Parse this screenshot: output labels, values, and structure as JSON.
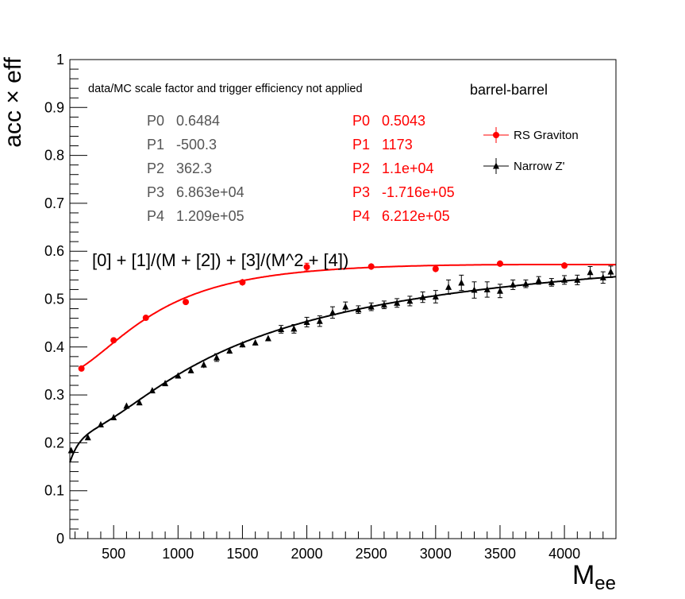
{
  "chart_data": {
    "type": "scatter",
    "xlabel": "M",
    "xlabel_sub": "ee",
    "ylabel": "acc × eff",
    "xlim": [
      160,
      4400
    ],
    "ylim": [
      0,
      1
    ],
    "x_ticks": [
      500,
      1000,
      1500,
      2000,
      2500,
      3000,
      3500,
      4000
    ],
    "y_ticks": [
      0,
      0.1,
      0.2,
      0.3,
      0.4,
      0.5,
      0.6,
      0.7,
      0.8,
      0.9,
      1
    ],
    "x_tick_labels": [
      "500",
      "1000",
      "1500",
      "2000",
      "2500",
      "3000",
      "3500",
      "4000"
    ],
    "y_tick_labels": [
      "0",
      "0.1",
      "0.2",
      "0.3",
      "0.4",
      "0.5",
      "0.6",
      "0.7",
      "0.8",
      "0.9",
      "1"
    ],
    "grid": false,
    "legend_position": "top-right",
    "annotations": {
      "note": "data/MC scale factor and trigger efficiency not applied",
      "category": "barrel-barrel",
      "formula": "[0] + [1]/(M + [2]) + [3]/(M^2 + [4])"
    },
    "fit_params": [
      {
        "series": "Narrow Z'",
        "color": "#555555",
        "labels": [
          "P0",
          "P1",
          "P2",
          "P3",
          "P4"
        ],
        "values": [
          "0.6484",
          "-500.3",
          "362.3",
          "6.863e+04",
          "1.209e+05"
        ],
        "numeric": [
          0.6484,
          -500.3,
          362.3,
          68630,
          120900
        ]
      },
      {
        "series": "RS Graviton",
        "color": "#ff0000",
        "labels": [
          "P0",
          "P1",
          "P2",
          "P3",
          "P4"
        ],
        "values": [
          "0.5043",
          "1173",
          "1.1e+04",
          "-1.716e+05",
          "6.212e+05"
        ],
        "numeric": [
          0.5043,
          1173,
          11000,
          -171600,
          621200
        ]
      }
    ],
    "series": [
      {
        "name": "RS Graviton",
        "color": "#ff0000",
        "marker": "circle",
        "points": [
          {
            "x": 250,
            "y": 0.355,
            "err": 0.005
          },
          {
            "x": 500,
            "y": 0.414,
            "err": 0.005
          },
          {
            "x": 750,
            "y": 0.461,
            "err": 0.005
          },
          {
            "x": 1060,
            "y": 0.494,
            "err": 0.006
          },
          {
            "x": 1500,
            "y": 0.535,
            "err": 0.007
          },
          {
            "x": 2000,
            "y": 0.567,
            "err": 0.008
          },
          {
            "x": 2500,
            "y": 0.568,
            "err": 0.007
          },
          {
            "x": 3000,
            "y": 0.563,
            "err": 0.007
          },
          {
            "x": 3500,
            "y": 0.574,
            "err": 0.007
          },
          {
            "x": 4000,
            "y": 0.57,
            "err": 0.007
          }
        ]
      },
      {
        "name": "Narrow Z'",
        "color": "#000000",
        "marker": "triangle",
        "points": [
          {
            "x": 170,
            "y": 0.184,
            "err": 0.004
          },
          {
            "x": 300,
            "y": 0.211,
            "err": 0.004
          },
          {
            "x": 400,
            "y": 0.238,
            "err": 0.004
          },
          {
            "x": 500,
            "y": 0.253,
            "err": 0.004
          },
          {
            "x": 600,
            "y": 0.277,
            "err": 0.005
          },
          {
            "x": 700,
            "y": 0.284,
            "err": 0.005
          },
          {
            "x": 800,
            "y": 0.309,
            "err": 0.005
          },
          {
            "x": 900,
            "y": 0.324,
            "err": 0.005
          },
          {
            "x": 1000,
            "y": 0.34,
            "err": 0.005
          },
          {
            "x": 1100,
            "y": 0.351,
            "err": 0.005
          },
          {
            "x": 1200,
            "y": 0.363,
            "err": 0.007
          },
          {
            "x": 1300,
            "y": 0.378,
            "err": 0.008
          },
          {
            "x": 1400,
            "y": 0.392,
            "err": 0.006
          },
          {
            "x": 1500,
            "y": 0.405,
            "err": 0.006
          },
          {
            "x": 1600,
            "y": 0.409,
            "err": 0.006
          },
          {
            "x": 1700,
            "y": 0.418,
            "err": 0.006
          },
          {
            "x": 1800,
            "y": 0.437,
            "err": 0.008
          },
          {
            "x": 1900,
            "y": 0.438,
            "err": 0.009
          },
          {
            "x": 2000,
            "y": 0.452,
            "err": 0.01
          },
          {
            "x": 2100,
            "y": 0.454,
            "err": 0.011
          },
          {
            "x": 2200,
            "y": 0.472,
            "err": 0.012
          },
          {
            "x": 2300,
            "y": 0.484,
            "err": 0.01
          },
          {
            "x": 2400,
            "y": 0.478,
            "err": 0.008
          },
          {
            "x": 2500,
            "y": 0.484,
            "err": 0.008
          },
          {
            "x": 2600,
            "y": 0.488,
            "err": 0.008
          },
          {
            "x": 2700,
            "y": 0.492,
            "err": 0.009
          },
          {
            "x": 2800,
            "y": 0.496,
            "err": 0.01
          },
          {
            "x": 2900,
            "y": 0.504,
            "err": 0.011
          },
          {
            "x": 3000,
            "y": 0.505,
            "err": 0.013
          },
          {
            "x": 3100,
            "y": 0.525,
            "err": 0.015
          },
          {
            "x": 3200,
            "y": 0.534,
            "err": 0.016
          },
          {
            "x": 3300,
            "y": 0.519,
            "err": 0.017
          },
          {
            "x": 3400,
            "y": 0.52,
            "err": 0.016
          },
          {
            "x": 3500,
            "y": 0.517,
            "err": 0.014
          },
          {
            "x": 3600,
            "y": 0.53,
            "err": 0.01
          },
          {
            "x": 3700,
            "y": 0.532,
            "err": 0.008
          },
          {
            "x": 3800,
            "y": 0.539,
            "err": 0.008
          },
          {
            "x": 3900,
            "y": 0.535,
            "err": 0.008
          },
          {
            "x": 4000,
            "y": 0.54,
            "err": 0.009
          },
          {
            "x": 4100,
            "y": 0.54,
            "err": 0.01
          },
          {
            "x": 4200,
            "y": 0.556,
            "err": 0.012
          },
          {
            "x": 4300,
            "y": 0.545,
            "err": 0.012
          },
          {
            "x": 4360,
            "y": 0.557,
            "err": 0.012
          }
        ]
      }
    ]
  }
}
